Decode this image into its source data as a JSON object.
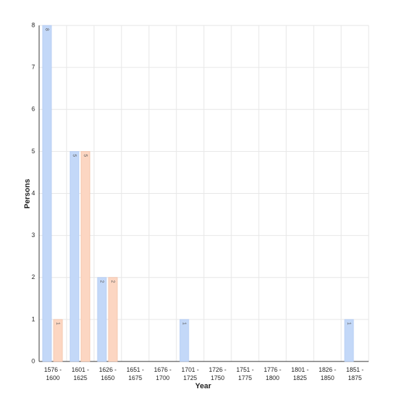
{
  "chart_data": {
    "type": "bar",
    "x_label": "Year",
    "y_label": "Persons",
    "categories": [
      "1576 - 1600",
      "1601 - 1625",
      "1626 - 1650",
      "1651 - 1675",
      "1676 - 1700",
      "1701 - 1725",
      "1726 - 1750",
      "1751 - 1775",
      "1776 - 1800",
      "1801 - 1825",
      "1826 - 1850",
      "1851 - 1875"
    ],
    "series": [
      {
        "color": "#c3d8f8",
        "values": [
          8,
          5,
          2,
          0,
          0,
          1,
          0,
          0,
          0,
          0,
          0,
          1
        ]
      },
      {
        "color": "#fcd6c2",
        "values": [
          1,
          5,
          2,
          0,
          0,
          0,
          0,
          0,
          0,
          0,
          0,
          0
        ]
      }
    ],
    "ylim": [
      0,
      8
    ],
    "yticks": [
      0,
      1,
      2,
      3,
      4,
      5,
      6,
      7,
      8
    ],
    "grid": true
  }
}
